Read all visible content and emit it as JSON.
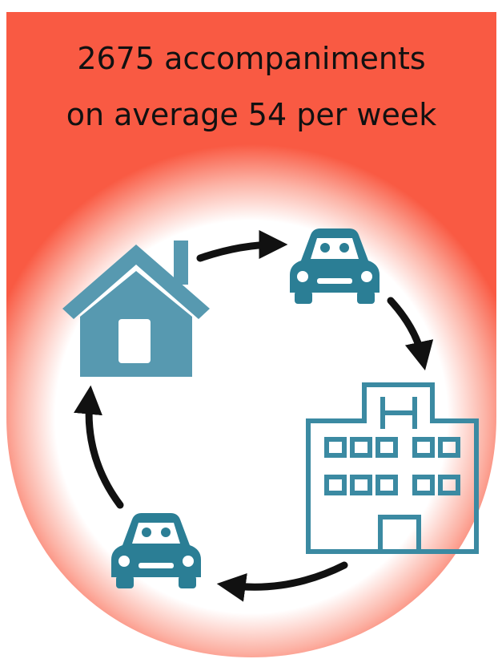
{
  "header": {
    "lines": [
      "2675 accompaniments",
      "on average 54 per week"
    ]
  }
}
